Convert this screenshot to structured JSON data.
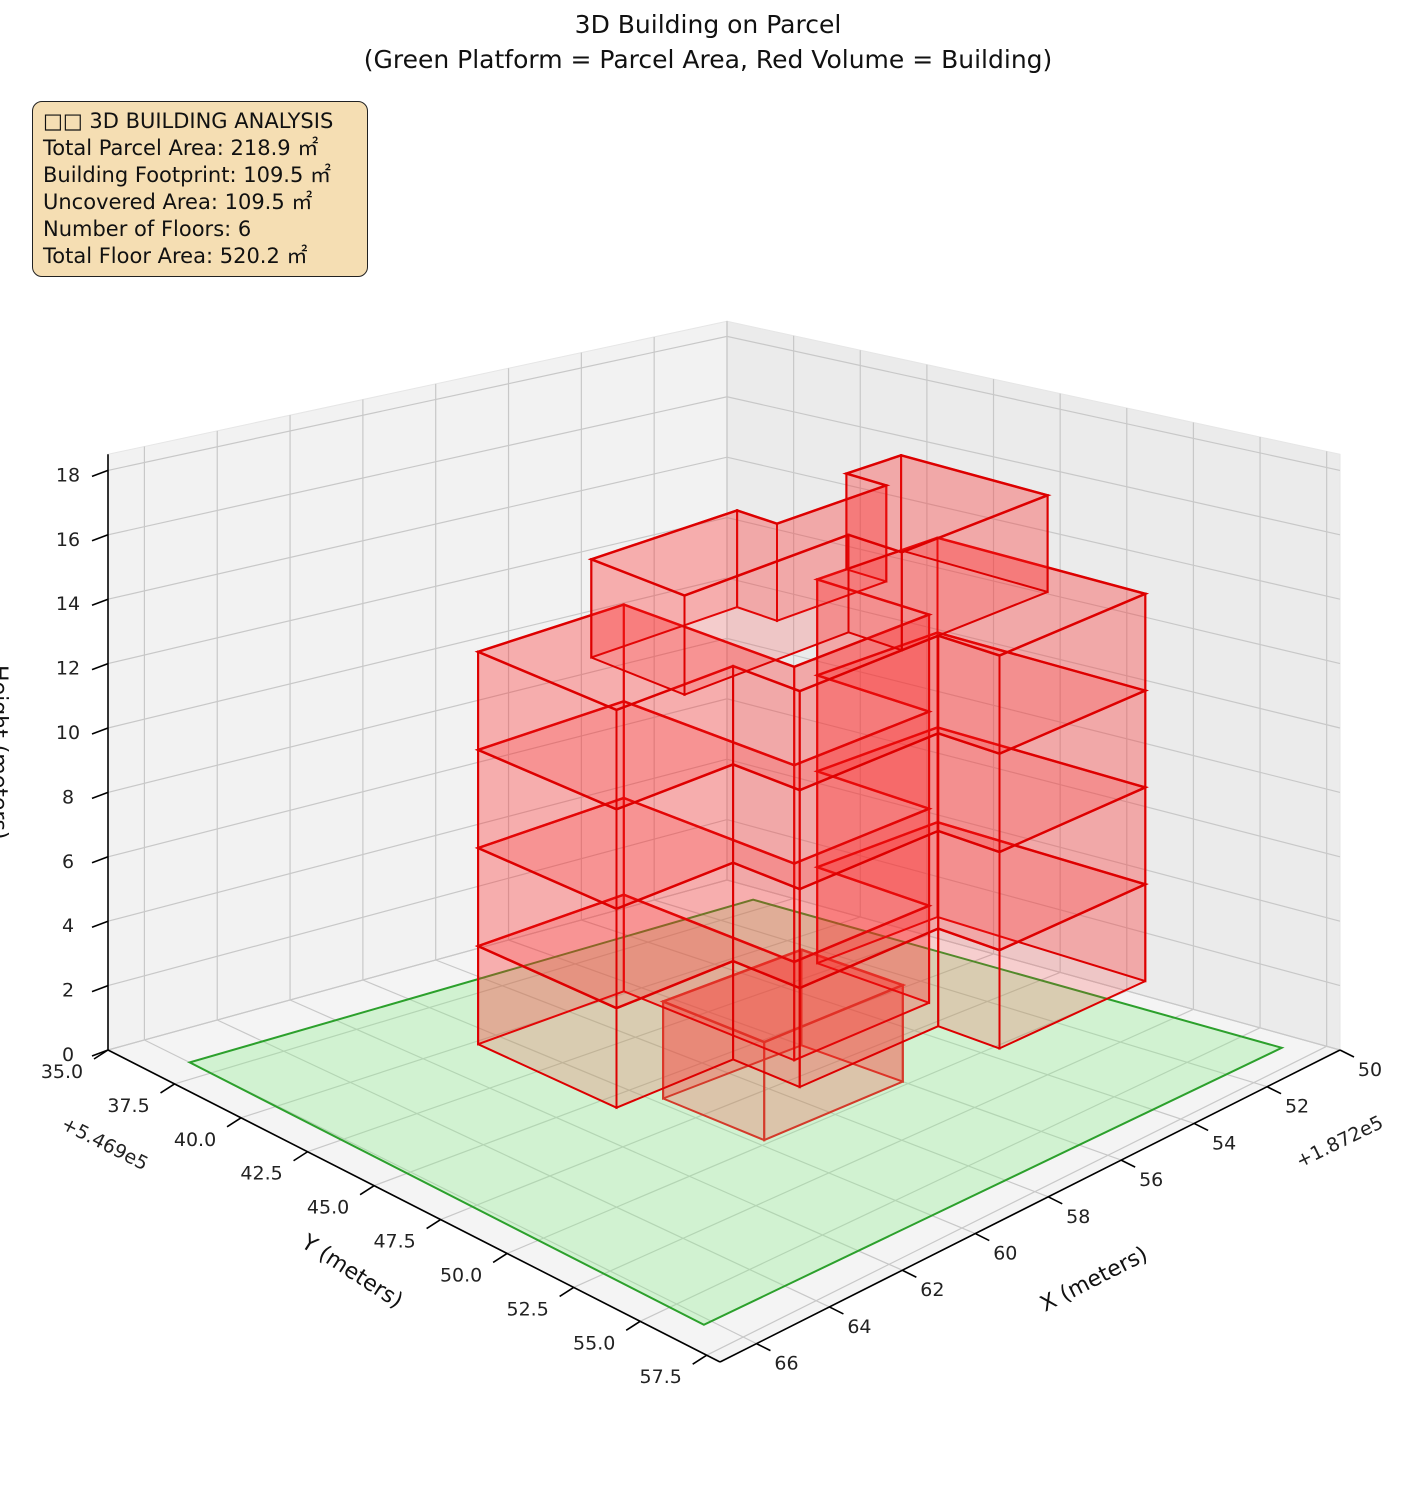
{
  "title": {
    "line1": "3D Building on Parcel",
    "line2": "(Green Platform = Parcel Area, Red Volume = Building)"
  },
  "info_box": {
    "heading": "□□ 3D BUILDING ANALYSIS",
    "lines": [
      "Total Parcel Area: 218.9 ㎡",
      "Building Footprint: 109.5 ㎡",
      "Uncovered Area: 109.5 ㎡",
      "Number of Floors: 6",
      "Total Floor Area: 520.2 ㎡"
    ]
  },
  "axes": {
    "x": {
      "label": "X (meters)",
      "offset": "+1.872e5",
      "ticks": [
        "50",
        "52",
        "54",
        "56",
        "58",
        "60",
        "62",
        "64",
        "66"
      ]
    },
    "y": {
      "label": "Y (meters)",
      "offset": "+5.469e5",
      "ticks": [
        "35.0",
        "37.5",
        "40.0",
        "42.5",
        "45.0",
        "47.5",
        "50.0",
        "52.5",
        "55.0",
        "57.5"
      ]
    },
    "z": {
      "label": "Height (meters)",
      "ticks": [
        "0",
        "2",
        "4",
        "6",
        "8",
        "10",
        "12",
        "14",
        "16",
        "18"
      ]
    }
  },
  "chart_data": {
    "type": "3d-extruded-polygons",
    "title": "3D Building on Parcel\n(Green Platform = Parcel Area, Red Volume = Building)",
    "xlabel": "X (meters)",
    "ylabel": "Y (meters)",
    "zlabel": "Height (meters)",
    "x_offset": 187200,
    "y_offset": 546900,
    "xlim": [
      50,
      67
    ],
    "ylim": [
      35,
      58
    ],
    "zlim": [
      0,
      18.5
    ],
    "grid": true,
    "parcel": {
      "color": "#2ca02c",
      "fill": "#90ee90",
      "polygon": [
        [
          50.5,
          56.5
        ],
        [
          50.6,
          36.8
        ],
        [
          66.0,
          36.7
        ],
        [
          66.2,
          56.3
        ]
      ],
      "z": 0
    },
    "building": {
      "color": "#ff0000",
      "floors": 6,
      "floor_height": 3,
      "footprint": [
        [
          56.3,
          47.0
        ],
        [
          56.3,
          51.2
        ],
        [
          60.0,
          51.2
        ],
        [
          60.0,
          44.8
        ],
        [
          64.0,
          44.8
        ],
        [
          64.0,
          50.0
        ],
        [
          60.8,
          50.0
        ],
        [
          60.8,
          52.5
        ],
        [
          57.0,
          52.5
        ],
        [
          57.0,
          54.8
        ],
        [
          53.0,
          54.8
        ],
        [
          53.0,
          47.0
        ]
      ],
      "levels": [
        {
          "z_base": 0,
          "z_top": 3,
          "footprint": [
            [
              56.0,
              46.0
            ],
            [
              56.0,
              49.8
            ],
            [
              59.8,
              49.8
            ],
            [
              59.8,
              46.0
            ]
          ]
        },
        {
          "z_base": 3,
          "z_top": 6,
          "footprint_ref": "footprint"
        },
        {
          "z_base": 6,
          "z_top": 9,
          "footprint_ref": "footprint"
        },
        {
          "z_base": 9,
          "z_top": 12,
          "footprint_ref": "footprint"
        },
        {
          "z_base": 12,
          "z_top": 15,
          "footprint_ref": "footprint"
        },
        {
          "z_base": 15,
          "z_top": 18,
          "footprint": [
            [
              55.5,
              47.0
            ],
            [
              55.5,
              48.5
            ],
            [
              58.5,
              48.5
            ],
            [
              58.5,
              47.0
            ],
            [
              62.5,
              47.0
            ],
            [
              62.5,
              50.5
            ],
            [
              58.0,
              50.5
            ],
            [
              58.0,
              52.5
            ],
            [
              54.0,
              52.5
            ],
            [
              54.0,
              47.0
            ]
          ]
        }
      ]
    }
  }
}
